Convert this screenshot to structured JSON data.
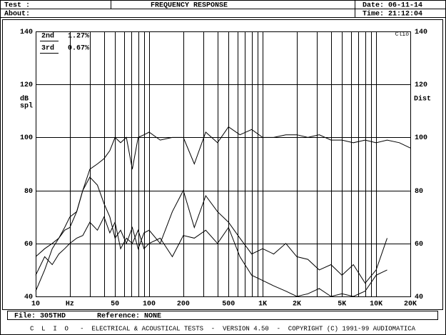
{
  "header": {
    "test": "Test :",
    "about": "About:",
    "date": "Date: 06-11-14",
    "time": "Time: 21:12:04"
  },
  "chart_data": {
    "type": "line",
    "title": "FREQUENCY RESPONSE",
    "ylabel_left": [
      "dB",
      "spl"
    ],
    "ylabel_right": "Dist",
    "corner_label": "Clio",
    "log_x": true,
    "xlim": [
      10,
      20000
    ],
    "ylim": [
      40,
      140
    ],
    "yticks": [
      40,
      60,
      80,
      100,
      120,
      140
    ],
    "xticks": [
      10,
      {
        "value": 20,
        "label": "Hz"
      },
      50,
      100,
      200,
      500,
      {
        "value": 1000,
        "label": "1K"
      },
      {
        "value": 2000,
        "label": "2K"
      },
      {
        "value": 5000,
        "label": "5K"
      },
      {
        "value": 10000,
        "label": "10K"
      },
      {
        "value": 20000,
        "label": "20K"
      }
    ],
    "xgrid": [
      10,
      20,
      30,
      40,
      50,
      60,
      70,
      80,
      90,
      100,
      200,
      300,
      400,
      500,
      600,
      700,
      800,
      900,
      1000,
      2000,
      3000,
      4000,
      5000,
      6000,
      7000,
      8000,
      9000,
      10000,
      20000
    ],
    "x": [
      10,
      12,
      14,
      16,
      18,
      20,
      23,
      26,
      30,
      35,
      40,
      45,
      50,
      56,
      63,
      71,
      80,
      90,
      100,
      125,
      160,
      200,
      250,
      315,
      400,
      500,
      630,
      800,
      1000,
      1250,
      1600,
      2000,
      2500,
      3150,
      4000,
      5000,
      6300,
      8000,
      10000,
      12500,
      16000,
      20000
    ],
    "series": [
      {
        "color": "#000000",
        "values": [
          42,
          50,
          58,
          62,
          66,
          70,
          72,
          80,
          88,
          90,
          92,
          95,
          100,
          98,
          100,
          88,
          100,
          101,
          102,
          99,
          100,
          100,
          90,
          102,
          98,
          104,
          101,
          103,
          100,
          100,
          101,
          101,
          100,
          101,
          99,
          99,
          98,
          99,
          98,
          99,
          98,
          96
        ]
      },
      {
        "name": "2nd",
        "thd": "1.27%",
        "color": "#000000",
        "values": [
          55,
          58,
          60,
          62,
          65,
          66,
          72,
          80,
          85,
          82,
          75,
          70,
          62,
          65,
          60,
          66,
          58,
          64,
          65,
          60,
          72,
          80,
          66,
          78,
          72,
          68,
          62,
          56,
          58,
          56,
          60,
          55,
          54,
          50,
          52,
          48,
          52,
          45,
          50,
          62,
          null,
          null
        ]
      },
      {
        "name": "3rd",
        "thd": "0.67%",
        "color": "#000000",
        "values": [
          48,
          55,
          52,
          56,
          58,
          60,
          62,
          63,
          68,
          65,
          70,
          64,
          68,
          58,
          62,
          60,
          65,
          58,
          60,
          62,
          55,
          63,
          62,
          65,
          60,
          66,
          55,
          48,
          46,
          44,
          42,
          40,
          41,
          43,
          40,
          41,
          40,
          42,
          48,
          50,
          null,
          null
        ]
      }
    ]
  },
  "footer": {
    "file": "File: 305THD",
    "reference": "Reference: NONE",
    "credits": "C  L  I  O   -  ELECTRICAL & ACOUSTICAL TESTS  -  VERSION 4.50  -  COPYRIGHT (C) 1991-99 AUDIOMATICA"
  }
}
